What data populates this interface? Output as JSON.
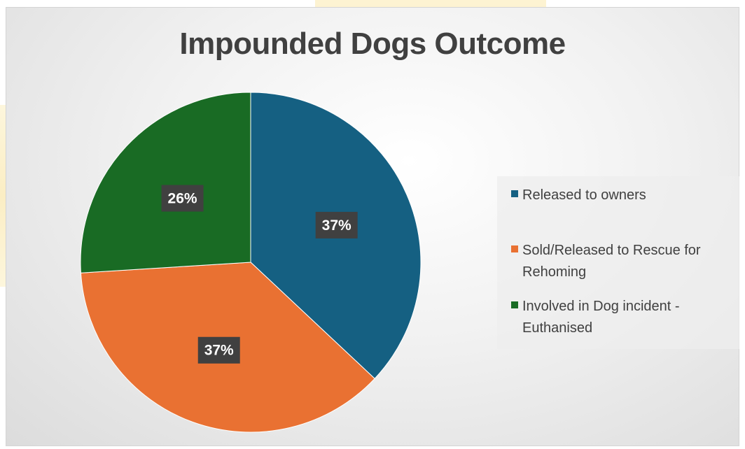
{
  "chart_data": {
    "type": "pie",
    "title": "Impounded Dogs Outcome",
    "categories": [
      "Released to owners",
      "Sold/Released to Rescue for Rehoming",
      "Involved in Dog incident - Euthanised"
    ],
    "values": [
      37,
      37,
      26
    ],
    "data_labels": [
      "37%",
      "37%",
      "26%"
    ],
    "colors": [
      "#156082",
      "#e97132",
      "#196b24"
    ],
    "legend_position": "right",
    "start_angle_deg": 0,
    "direction": "clockwise"
  }
}
